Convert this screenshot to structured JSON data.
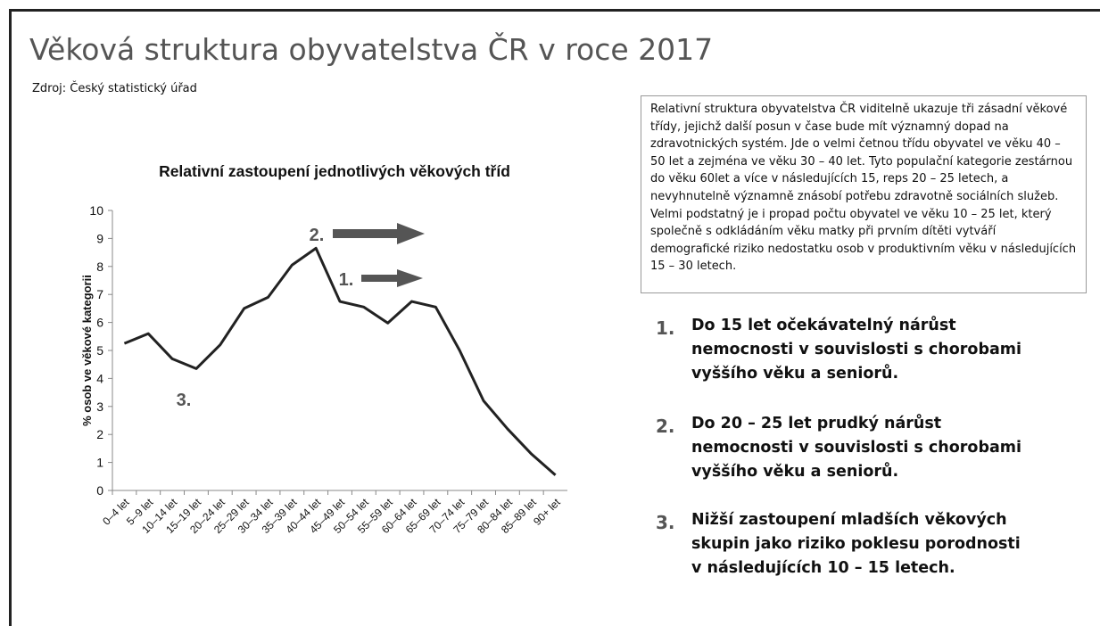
{
  "slide_title": "Věková struktura obyvatelstva ČR v roce 2017",
  "source": "Zdroj: Český statistický úřad",
  "description": "Relativní struktura obyvatelstva ČR viditelně ukazuje tři zásadní věkové třídy, jejichž další posun v čase bude mít významný dopad na zdravotnických systém. Jde o velmi četnou třídu obyvatel ve věku 40 – 50 let a zejména ve věku 30 – 40 let. Tyto populační kategorie zestárnou do věku 60let a více v následujících 15, reps 20 – 25 letech, a nevyhnutelně významně znásobí potřebu zdravotně sociálních služeb. Velmi podstatný je i propad počtu obyvatel ve věku 10 – 25 let, který společně s odkládáním věku matky při prvním dítěti vytváří demografické riziko nedostatku osob v produktivním věku v následujících 15 – 30 letech.",
  "points": [
    {
      "number": "1.",
      "text": "Do 15 let očekávatelný nárůst nemocnosti v souvislosti s chorobami vyššího věku a seniorů."
    },
    {
      "number": "2.",
      "text": "Do 20 – 25 let prudký nárůst nemocnosti v souvislosti s chorobami vyššího věku a seniorů."
    },
    {
      "number": "3.",
      "text": "Nižší zastoupení mladších věkových skupin jako riziko poklesu porodnosti v následujících 10 – 15 letech."
    }
  ],
  "chart_data": {
    "type": "line",
    "title": "Relativní zastoupení jednotlivých věkových tříd",
    "y_label": "% osob ve věkové kategorii",
    "categories": [
      "0–4 let",
      "5–9 let",
      "10–14 let",
      "15–19 let",
      "20–24 let",
      "25–29 let",
      "30–34 let",
      "35–39 let",
      "40–44 let",
      "45–49 let",
      "50–54 let",
      "55–59 let",
      "60–64 let",
      "65–69 let",
      "70–74 let",
      "75–79 let",
      "80–84 let",
      "85–89 let",
      "90+ let"
    ],
    "values": [
      5.25,
      5.6,
      4.7,
      4.35,
      5.2,
      6.5,
      6.9,
      8.05,
      8.65,
      6.75,
      6.55,
      5.98,
      6.75,
      6.55,
      5.0,
      3.2,
      2.2,
      1.3,
      0.55
    ],
    "color": "#222222",
    "ylim": [
      0,
      10
    ],
    "yticks": [
      0,
      1,
      2,
      3,
      4,
      5,
      6,
      7,
      8,
      9,
      10
    ],
    "annotations": [
      "2.",
      "1.",
      "3."
    ]
  }
}
